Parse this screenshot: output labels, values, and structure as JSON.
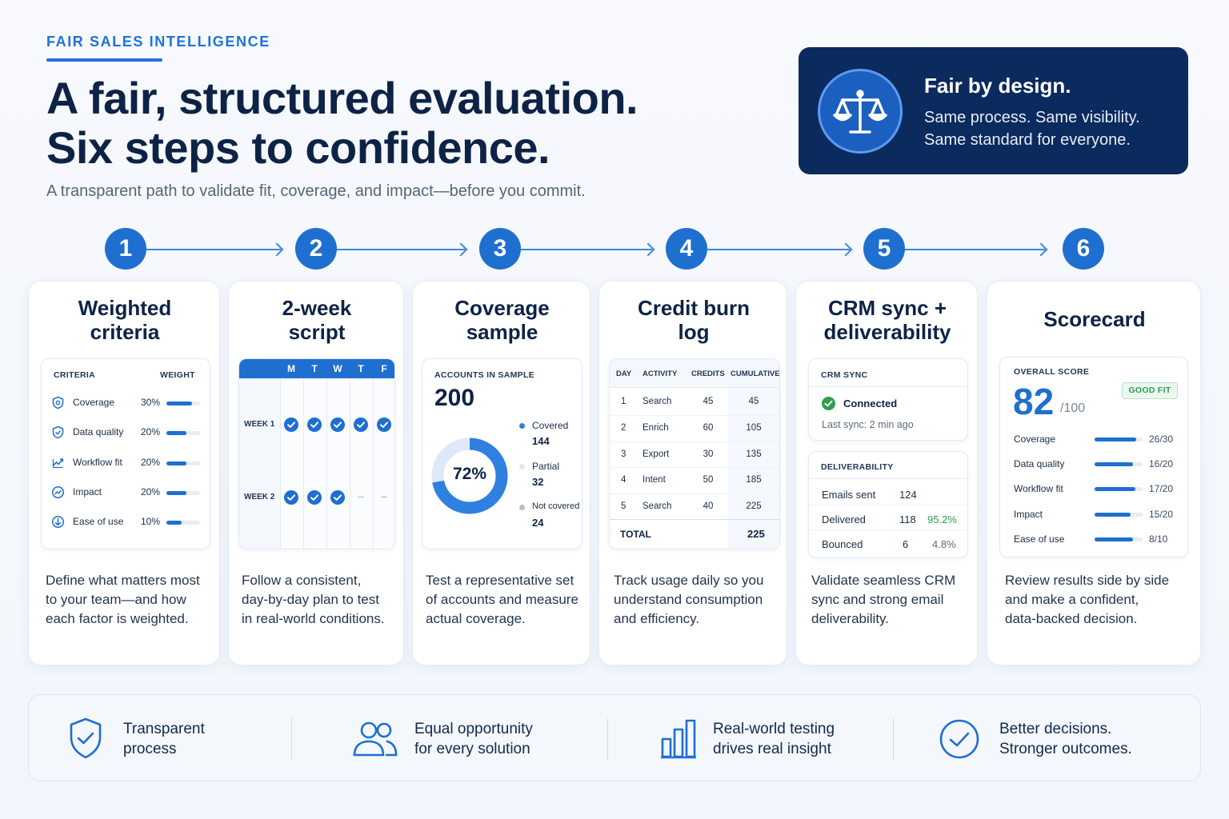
{
  "header": {
    "eyebrow": "FAIR SALES INTELLIGENCE",
    "headline_1": "A fair, structured evaluation.",
    "headline_2": "Six steps to confidence.",
    "subhead": "A transparent path to validate fit, coverage, and impact—before you commit."
  },
  "hero": {
    "icon": "scales-icon",
    "title": "Fair by design.",
    "line_1": "Same process. Same visibility.",
    "line_2": "Same standard for everyone."
  },
  "steps": [
    "1",
    "2",
    "3",
    "4",
    "5",
    "6"
  ],
  "cards": {
    "criteria": {
      "title_1": "Weighted",
      "title_2": "criteria",
      "col_criteria": "CRITERIA",
      "col_weight": "WEIGHT",
      "rows": [
        {
          "label": "Coverage",
          "weight": "30%",
          "fill": 0.75,
          "icon": "shield-icon"
        },
        {
          "label": "Data quality",
          "weight": "20%",
          "fill": 0.6,
          "icon": "shield-check-icon"
        },
        {
          "label": "Workflow fit",
          "weight": "20%",
          "fill": 0.6,
          "icon": "workflow-icon"
        },
        {
          "label": "Impact",
          "weight": "20%",
          "fill": 0.6,
          "icon": "impact-icon"
        },
        {
          "label": "Ease of use",
          "weight": "10%",
          "fill": 0.45,
          "icon": "ease-icon"
        }
      ],
      "desc_1": "Define what matters most",
      "desc_2": "to your team—and how",
      "desc_3": "each factor is weighted."
    },
    "script": {
      "title_1": "2-week",
      "title_2": "script",
      "days": [
        "M",
        "T",
        "W",
        "T",
        "F"
      ],
      "week_1": "WEEK 1",
      "week_2": "WEEK 2",
      "dash": "–",
      "desc_1": "Follow a consistent,",
      "desc_2": "day-by-day plan to test",
      "desc_3": "in real-world conditions."
    },
    "coverage": {
      "title_1": "Coverage",
      "title_2": "sample",
      "label": "ACCOUNTS IN SAMPLE",
      "total": "200",
      "pct": "72%",
      "pct_value": 0.72,
      "covered_label": "Covered",
      "covered": "144",
      "partial_label": "Partial",
      "partial": "32",
      "not_label": "Not covered",
      "not": "24",
      "desc_1": "Test a representative set",
      "desc_2": "of accounts and measure",
      "desc_3": "actual coverage."
    },
    "credit": {
      "title_1": "Credit burn",
      "title_2": "log",
      "cols": [
        "DAY",
        "ACTIVITY",
        "CREDITS",
        "CUMULATIVE"
      ],
      "rows": [
        [
          "1",
          "Search",
          "45",
          "45"
        ],
        [
          "2",
          "Enrich",
          "60",
          "105"
        ],
        [
          "3",
          "Export",
          "30",
          "135"
        ],
        [
          "4",
          "Intent",
          "50",
          "185"
        ],
        [
          "5",
          "Search",
          "40",
          "225"
        ]
      ],
      "total_label": "TOTAL",
      "total": "225",
      "desc_1": "Track usage daily so you",
      "desc_2": "understand consumption",
      "desc_3": "and efficiency."
    },
    "crm": {
      "title_1": "CRM sync +",
      "title_2": "deliverability",
      "sync_label": "CRM SYNC",
      "connected": "Connected",
      "last_sync": "Last sync: 2 min ago",
      "deliv_label": "DELIVERABILITY",
      "sent_label": "Emails sent",
      "sent": "124",
      "delivered_label": "Delivered",
      "delivered": "118",
      "delivered_pct": "95.2%",
      "bounced_label": "Bounced",
      "bounced": "6",
      "bounced_pct": "4.8%",
      "desc_1": "Validate seamless CRM",
      "desc_2": "sync and strong email",
      "desc_3": "deliverability."
    },
    "scorecard": {
      "title": "Scorecard",
      "label": "OVERALL SCORE",
      "score": "82",
      "out_of": "/100",
      "badge": "GOOD FIT",
      "rows": [
        {
          "label": "Coverage",
          "score": "26/30",
          "fill": 0.867
        },
        {
          "label": "Data quality",
          "score": "16/20",
          "fill": 0.8
        },
        {
          "label": "Workflow fit",
          "score": "17/20",
          "fill": 0.85
        },
        {
          "label": "Impact",
          "score": "15/20",
          "fill": 0.75
        },
        {
          "label": "Ease of use",
          "score": "8/10",
          "fill": 0.8
        }
      ],
      "desc_1": "Review results side by side",
      "desc_2": "and make a confident,",
      "desc_3": "data-backed decision."
    }
  },
  "footer": [
    {
      "icon": "shield-check-icon",
      "line_1": "Transparent",
      "line_2": "process"
    },
    {
      "icon": "users-icon",
      "line_1": "Equal opportunity",
      "line_2": "for every solution"
    },
    {
      "icon": "bar-chart-icon",
      "line_1": "Real-world testing",
      "line_2": "drives real insight"
    },
    {
      "icon": "check-circle-icon",
      "line_1": "Better decisions.",
      "line_2": "Stronger outcomes."
    }
  ],
  "colors": {
    "accent": "#1e6fd0",
    "navy": "#0b2a5e",
    "success": "#2e9e4f"
  }
}
